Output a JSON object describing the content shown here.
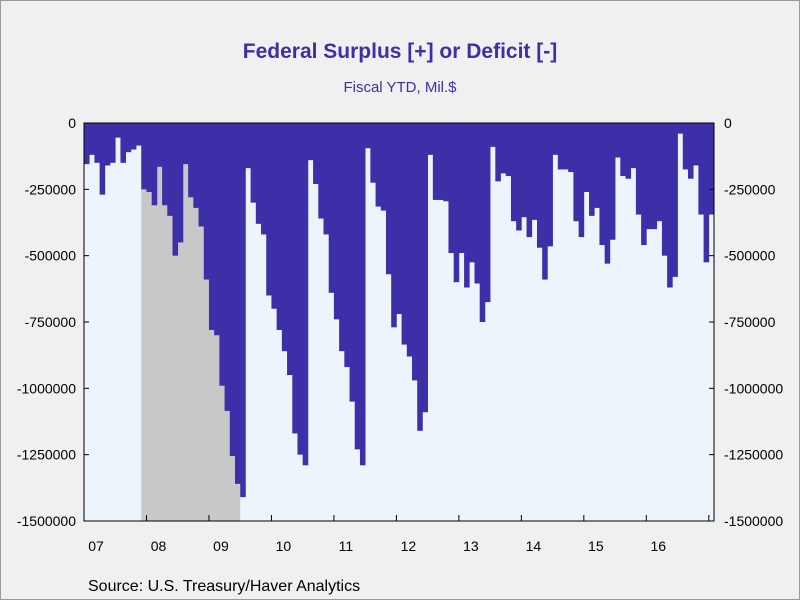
{
  "title": "Federal Surplus [+] or Deficit [-]",
  "subtitle": "Fiscal YTD, Mil.$",
  "source": "Source:  U.S. Treasury/Haver Analytics",
  "colors": {
    "bar": "#3d2fa8",
    "plot_bg": "#eef4fc",
    "recession": "#c8c8c8",
    "page_bg": "#f0f0f0"
  },
  "chart_data": {
    "type": "bar",
    "title": "Federal Surplus [+] or Deficit [-]",
    "subtitle": "Fiscal YTD, Mil.$",
    "x_tick_labels": [
      "07",
      "08",
      "09",
      "10",
      "11",
      "12",
      "13",
      "14",
      "15",
      "16"
    ],
    "y_tick_labels": [
      "0",
      "-250000",
      "-500000",
      "-750000",
      "-1000000",
      "-1250000",
      "-1500000"
    ],
    "y_tick_values": [
      0,
      -250000,
      -500000,
      -750000,
      -1000000,
      -1250000,
      -1500000
    ],
    "ylim": [
      -1500000,
      0
    ],
    "start_period": "2007-01",
    "frequency": "monthly",
    "recession_shading": {
      "start": "2007-12",
      "end": "2009-06"
    },
    "grid": false,
    "legend": "none",
    "values": [
      -155000,
      -120000,
      -150000,
      -270000,
      -160000,
      -150000,
      -55000,
      -150000,
      -110000,
      -100000,
      -85000,
      -250000,
      -260000,
      -310000,
      -165000,
      -310000,
      -350000,
      -500000,
      -450000,
      -155000,
      -280000,
      -320000,
      -390000,
      -590000,
      -780000,
      -800000,
      -990000,
      -1085000,
      -1255000,
      -1360000,
      -1410000,
      -170000,
      -300000,
      -380000,
      -420000,
      -650000,
      -700000,
      -780000,
      -860000,
      -950000,
      -1170000,
      -1250000,
      -1290000,
      -140000,
      -230000,
      -360000,
      -420000,
      -640000,
      -740000,
      -860000,
      -920000,
      -1050000,
      -1230000,
      -1290000,
      -95000,
      -225000,
      -315000,
      -330000,
      -570000,
      -770000,
      -720000,
      -835000,
      -880000,
      -970000,
      -1160000,
      -1090000,
      -120000,
      -290000,
      -290000,
      -295000,
      -490000,
      -600000,
      -490000,
      -620000,
      -525000,
      -605000,
      -750000,
      -675000,
      -90000,
      -220000,
      -190000,
      -200000,
      -370000,
      -405000,
      -355000,
      -430000,
      -365000,
      -470000,
      -590000,
      -465000,
      -120000,
      -175000,
      -175000,
      -185000,
      -370000,
      -430000,
      -260000,
      -350000,
      -320000,
      -460000,
      -530000,
      -440000,
      -130000,
      -200000,
      -210000,
      -170000,
      -345000,
      -460000,
      -400000,
      -400000,
      -370000,
      -500000,
      -620000,
      -580000,
      -40000,
      -175000,
      -210000,
      -160000,
      -345000,
      -525000,
      -345000
    ]
  }
}
